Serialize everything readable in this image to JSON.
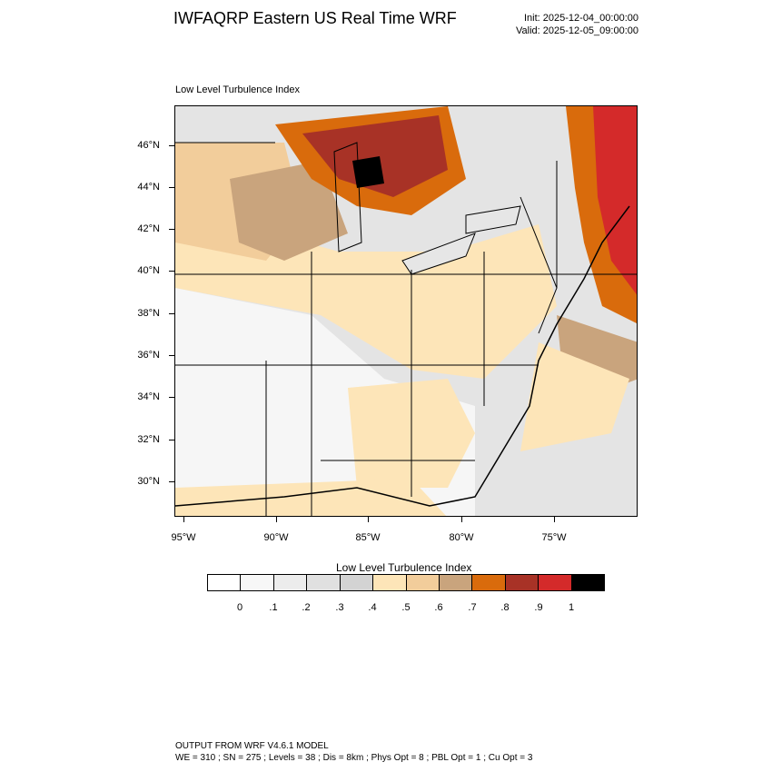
{
  "header": {
    "title": "IWFAQRP Eastern US Real Time WRF",
    "init": "Init: 2025-12-04_00:00:00",
    "valid": "Valid: 2025-12-05_09:00:00"
  },
  "map": {
    "subtitle": "Low Level Turbulence Index",
    "lat_labels": [
      "46°N",
      "44°N",
      "42°N",
      "40°N",
      "38°N",
      "36°N",
      "34°N",
      "32°N",
      "30°N"
    ],
    "lon_labels": [
      "95°W",
      "90°W",
      "85°W",
      "80°W",
      "75°W"
    ]
  },
  "colorbar": {
    "title": "Low Level Turbulence Index",
    "labels": [
      "0",
      ".1",
      ".2",
      ".3",
      ".4",
      ".5",
      ".6",
      ".7",
      ".8",
      ".9",
      "1"
    ],
    "colors": [
      "#ffffff",
      "#f7f7f7",
      "#ececec",
      "#e0e0e0",
      "#d3d3d3",
      "#fde5b8",
      "#f2cd9b",
      "#c9a47d",
      "#d96b0c",
      "#a83226",
      "#d42a2a",
      "#000000"
    ]
  },
  "footer": {
    "line1": "OUTPUT FROM WRF V4.6.1 MODEL",
    "line2": "WE = 310 ; SN = 275 ; Levels = 38 ; Dis = 8km ; Phys Opt = 8 ; PBL Opt = 1 ; Cu Opt = 3"
  }
}
